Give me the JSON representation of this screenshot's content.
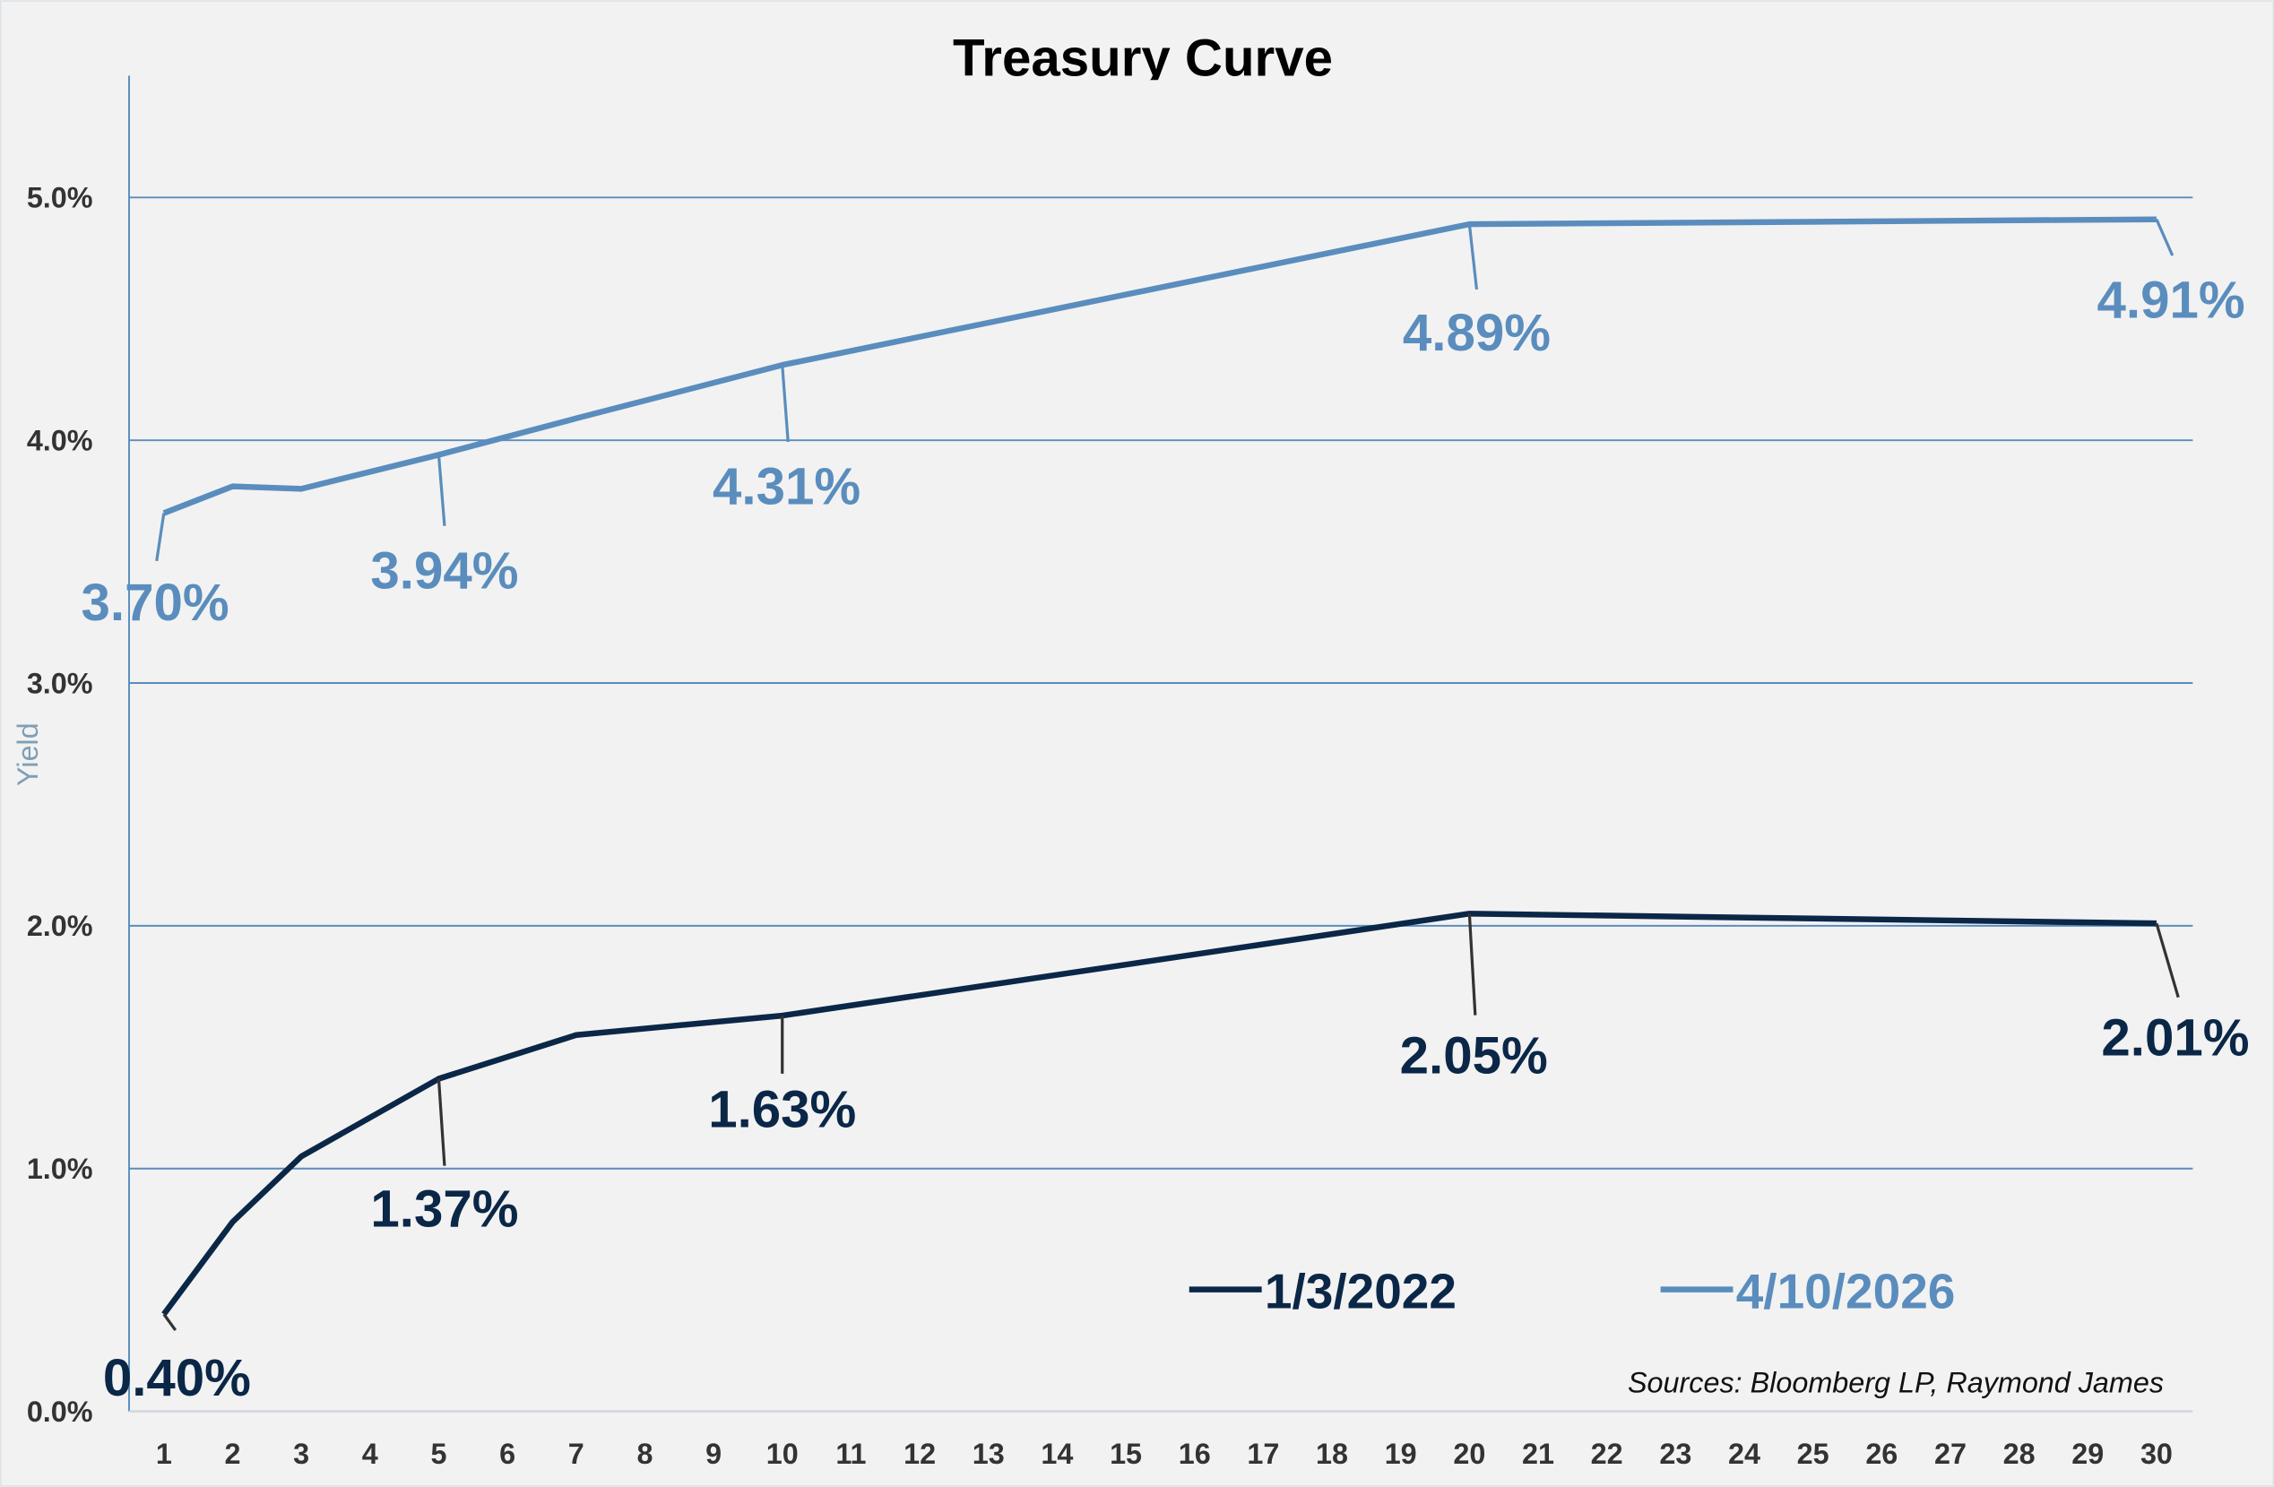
{
  "chart_data": {
    "type": "line",
    "title": "Treasury Curve",
    "ylabel": "Yield",
    "xlabel": "",
    "x_ticks": [
      "1",
      "2",
      "3",
      "4",
      "5",
      "6",
      "7",
      "8",
      "9",
      "10",
      "11",
      "12",
      "13",
      "14",
      "15",
      "16",
      "17",
      "18",
      "19",
      "20",
      "21",
      "22",
      "23",
      "24",
      "25",
      "26",
      "27",
      "28",
      "29",
      "30"
    ],
    "y_ticks": [
      "0.0%",
      "1.0%",
      "2.0%",
      "3.0%",
      "4.0%",
      "5.0%"
    ],
    "xlim": [
      1,
      30
    ],
    "ylim": [
      0,
      5.5
    ],
    "grid": "horizontal",
    "legend_position": "bottom-right",
    "series": [
      {
        "name": "1/3/2022",
        "color": "#0b2747",
        "x": [
          1,
          2,
          3,
          5,
          7,
          10,
          20,
          30
        ],
        "y": [
          0.4,
          0.78,
          1.05,
          1.37,
          1.55,
          1.63,
          2.05,
          2.01
        ],
        "labels": [
          {
            "x": 1,
            "text": "0.40%"
          },
          {
            "x": 5,
            "text": "1.37%"
          },
          {
            "x": 10,
            "text": "1.63%"
          },
          {
            "x": 20,
            "text": "2.05%"
          },
          {
            "x": 30,
            "text": "2.01%"
          }
        ]
      },
      {
        "name": "4/10/2026",
        "color": "#5a8dbd",
        "x": [
          1,
          2,
          3,
          5,
          7,
          10,
          20,
          30
        ],
        "y": [
          3.7,
          3.81,
          3.8,
          3.94,
          4.09,
          4.31,
          4.89,
          4.91
        ],
        "labels": [
          {
            "x": 1,
            "text": "3.70%"
          },
          {
            "x": 5,
            "text": "3.94%"
          },
          {
            "x": 10,
            "text": "4.31%"
          },
          {
            "x": 20,
            "text": "4.89%"
          },
          {
            "x": 30,
            "text": "4.91%"
          }
        ]
      }
    ],
    "source_note": "Sources: Bloomberg LP, Raymond James"
  }
}
